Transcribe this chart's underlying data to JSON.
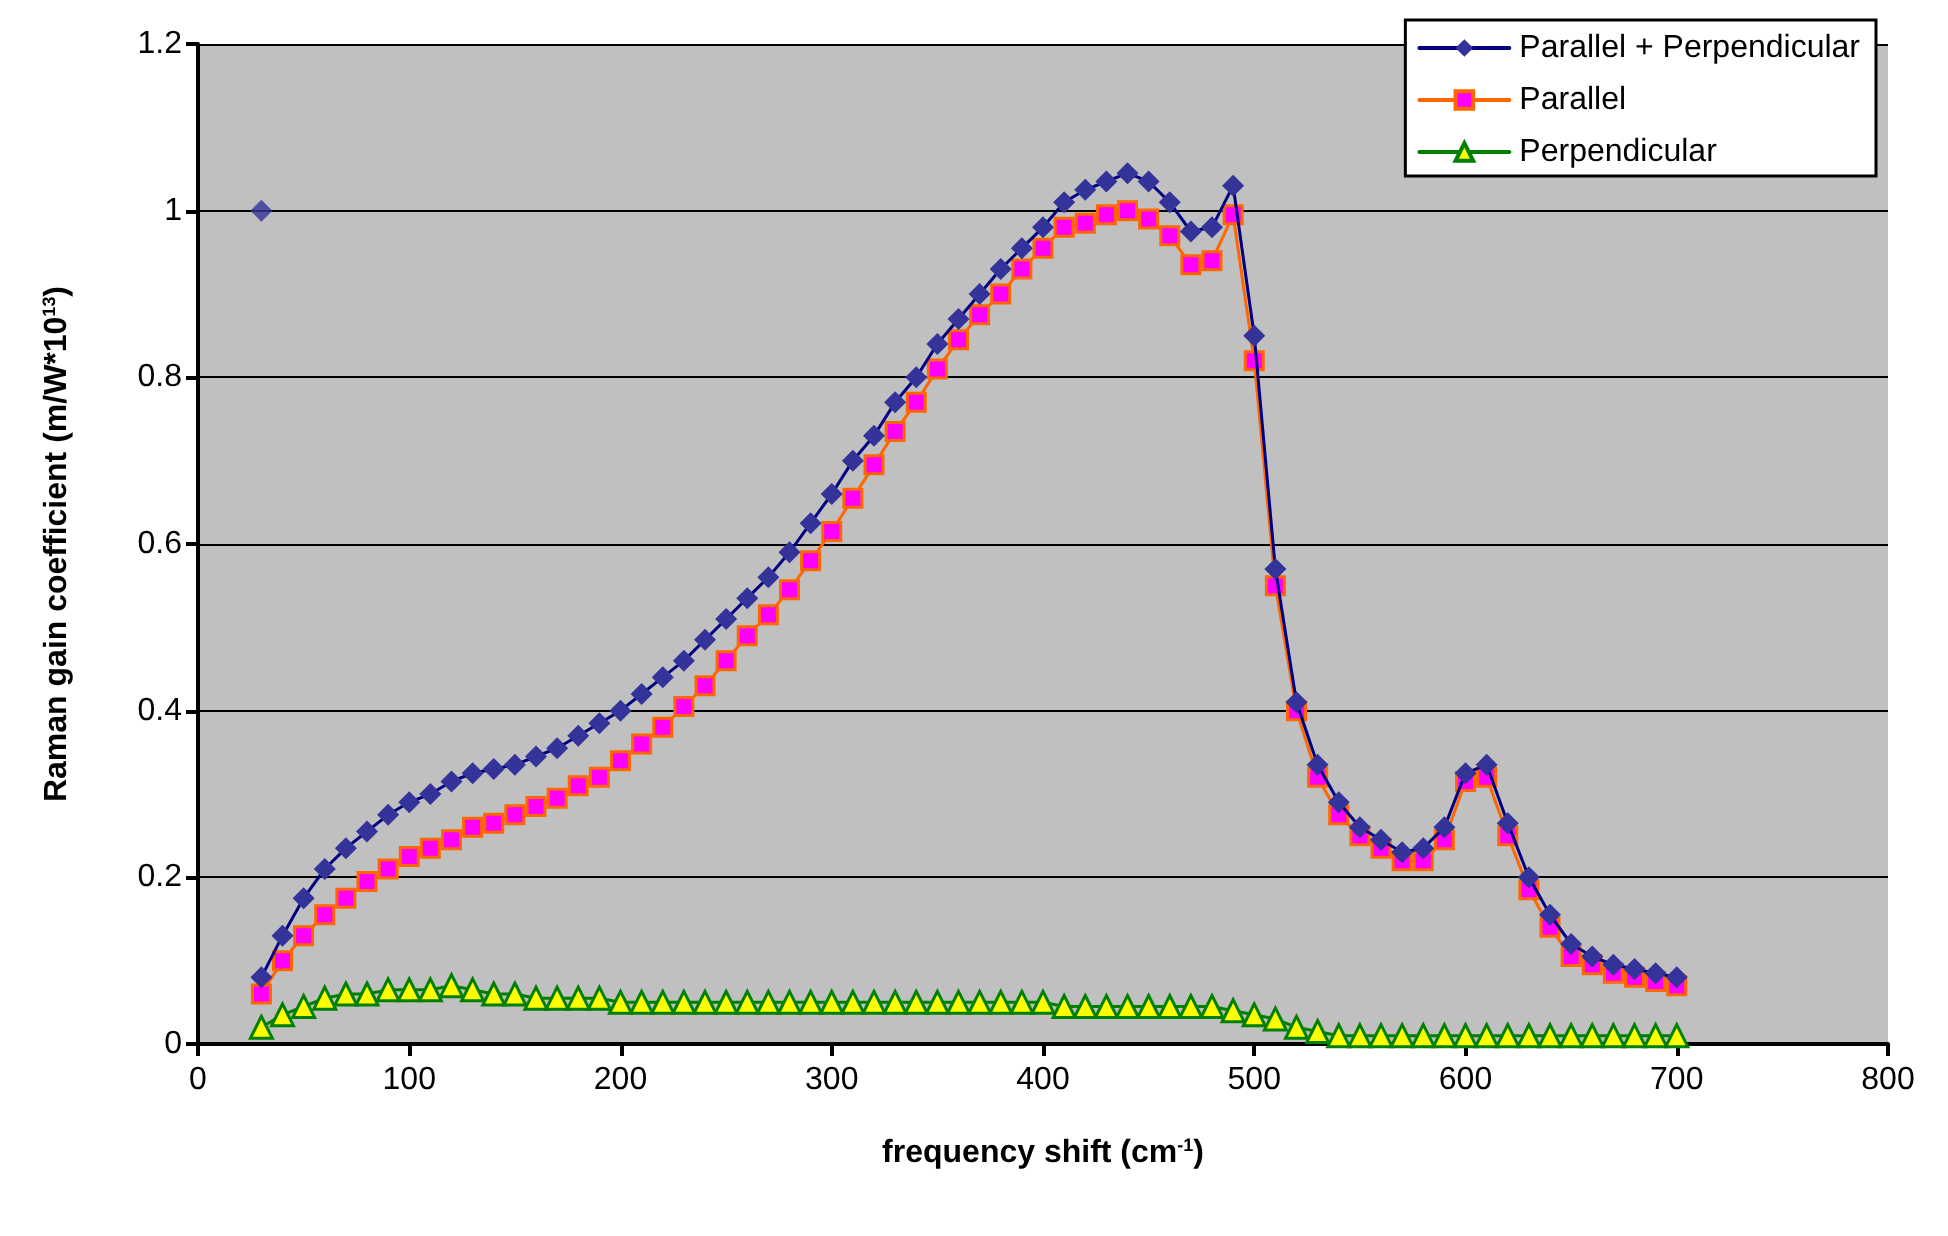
{
  "chart_data": {
    "type": "line",
    "xlabel": "frequency shift (cm$^{-1}$)",
    "ylabel": "Raman gain coefficient (m/W*10$^{13}$)",
    "x": [
      30,
      40,
      50,
      60,
      70,
      80,
      90,
      100,
      110,
      120,
      130,
      140,
      150,
      160,
      170,
      180,
      190,
      200,
      210,
      220,
      230,
      240,
      250,
      260,
      270,
      280,
      290,
      300,
      310,
      320,
      330,
      340,
      350,
      360,
      370,
      380,
      390,
      400,
      410,
      420,
      430,
      440,
      450,
      460,
      470,
      480,
      490,
      500,
      510,
      520,
      530,
      540,
      550,
      560,
      570,
      580,
      590,
      600,
      610,
      620,
      630,
      640,
      650,
      660,
      670,
      680,
      690,
      700
    ],
    "xlim": [
      0,
      800
    ],
    "xticks": [
      0,
      100,
      200,
      300,
      400,
      500,
      600,
      700,
      800
    ],
    "ylim": [
      0,
      1.2
    ],
    "yticks": [
      0,
      0.2,
      0.4,
      0.6,
      0.8,
      1,
      1.2
    ],
    "grid": "y",
    "legend": "top right",
    "series": [
      {
        "name": "Parallel + Perpendicular",
        "color": "#333399",
        "marker": "diamond",
        "values": [
          0.08,
          0.13,
          0.175,
          0.21,
          0.235,
          0.255,
          0.275,
          0.29,
          0.3,
          0.315,
          0.325,
          0.33,
          0.335,
          0.345,
          0.355,
          0.37,
          0.385,
          0.4,
          0.42,
          0.44,
          0.46,
          0.485,
          0.51,
          0.535,
          0.56,
          0.59,
          0.625,
          0.66,
          0.7,
          0.73,
          0.77,
          0.8,
          0.84,
          0.87,
          0.9,
          0.93,
          0.955,
          0.98,
          1.01,
          1.025,
          1.035,
          1.045,
          1.035,
          1.01,
          0.975,
          0.98,
          1.03,
          0.85,
          0.57,
          0.41,
          0.335,
          0.29,
          0.26,
          0.245,
          0.23,
          0.235,
          0.26,
          0.325,
          0.335,
          0.265,
          0.2,
          0.155,
          0.12,
          0.105,
          0.095,
          0.09,
          0.085,
          0.08
        ]
      },
      {
        "name": "Parallel",
        "color": "#ff00ff",
        "marker": "square",
        "values": [
          0.06,
          0.1,
          0.13,
          0.155,
          0.175,
          0.195,
          0.21,
          0.225,
          0.235,
          0.245,
          0.26,
          0.265,
          0.275,
          0.285,
          0.295,
          0.31,
          0.32,
          0.34,
          0.36,
          0.38,
          0.405,
          0.43,
          0.46,
          0.49,
          0.515,
          0.545,
          0.58,
          0.615,
          0.655,
          0.695,
          0.735,
          0.77,
          0.81,
          0.845,
          0.875,
          0.9,
          0.93,
          0.955,
          0.98,
          0.985,
          0.995,
          1,
          0.99,
          0.97,
          0.935,
          0.94,
          0.995,
          0.82,
          0.55,
          0.4,
          0.32,
          0.275,
          0.25,
          0.235,
          0.22,
          0.22,
          0.245,
          0.315,
          0.32,
          0.25,
          0.185,
          0.14,
          0.105,
          0.095,
          0.085,
          0.08,
          0.075,
          0.07
        ]
      },
      {
        "name": "Perpendicular",
        "color": "#ffff00",
        "marker": "triangle",
        "values": [
          0.02,
          0.035,
          0.045,
          0.055,
          0.06,
          0.06,
          0.065,
          0.065,
          0.065,
          0.07,
          0.065,
          0.06,
          0.06,
          0.055,
          0.055,
          0.055,
          0.055,
          0.05,
          0.05,
          0.05,
          0.05,
          0.05,
          0.05,
          0.05,
          0.05,
          0.05,
          0.05,
          0.05,
          0.05,
          0.05,
          0.05,
          0.05,
          0.05,
          0.05,
          0.05,
          0.05,
          0.05,
          0.05,
          0.045,
          0.045,
          0.045,
          0.045,
          0.045,
          0.045,
          0.045,
          0.045,
          0.04,
          0.035,
          0.03,
          0.02,
          0.015,
          0.01,
          0.01,
          0.01,
          0.01,
          0.01,
          0.01,
          0.01,
          0.01,
          0.01,
          0.01,
          0.01,
          0.01,
          0.01,
          0.01,
          0.01,
          0.01,
          0.01
        ]
      },
      {
        "type": "scatter",
        "color": "#333399",
        "marker": "diamond",
        "x": [
          30
        ],
        "values": [
          1
        ]
      }
    ]
  }
}
